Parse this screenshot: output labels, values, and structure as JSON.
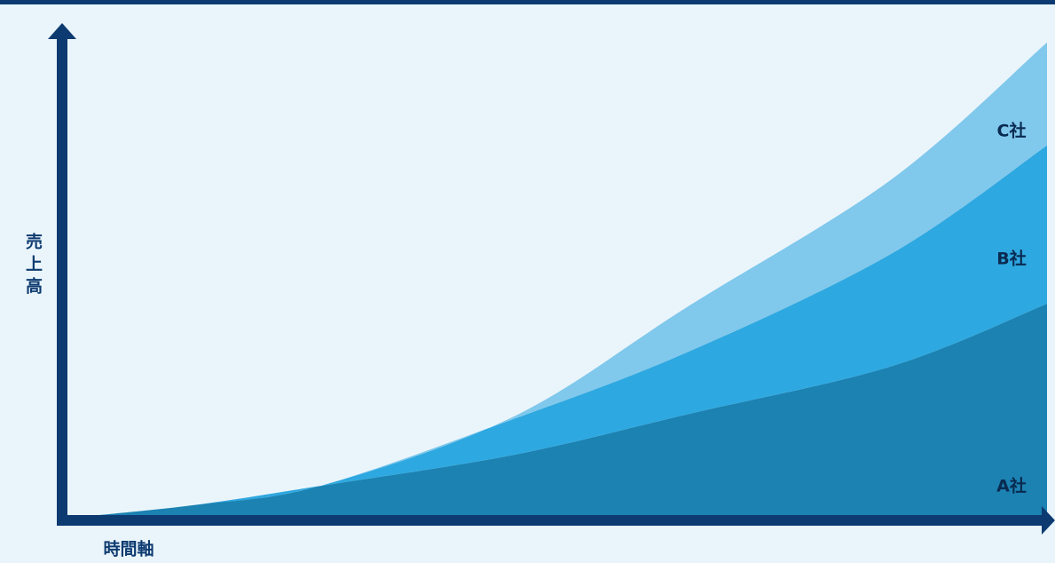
{
  "chart_data": {
    "type": "area",
    "stacked": true,
    "x_label": "時間軸",
    "y_label": "売上高",
    "x": [
      0,
      12,
      25,
      45,
      63,
      84,
      100
    ],
    "xlim": [
      0,
      100
    ],
    "ylim": [
      0,
      100
    ],
    "series": [
      {
        "name": "A社",
        "color": "#1b82b2",
        "values": [
          0.5,
          3,
          7,
          13.5,
          22,
          32,
          45
        ]
      },
      {
        "name": "B社",
        "color": "#2ea8e0",
        "values": [
          0,
          0,
          0,
          7.5,
          13,
          23.5,
          33
        ]
      },
      {
        "name": "C社",
        "color": "#80c8ec",
        "values": [
          0,
          0,
          0,
          0.5,
          9.5,
          15.5,
          21.5
        ]
      }
    ]
  }
}
